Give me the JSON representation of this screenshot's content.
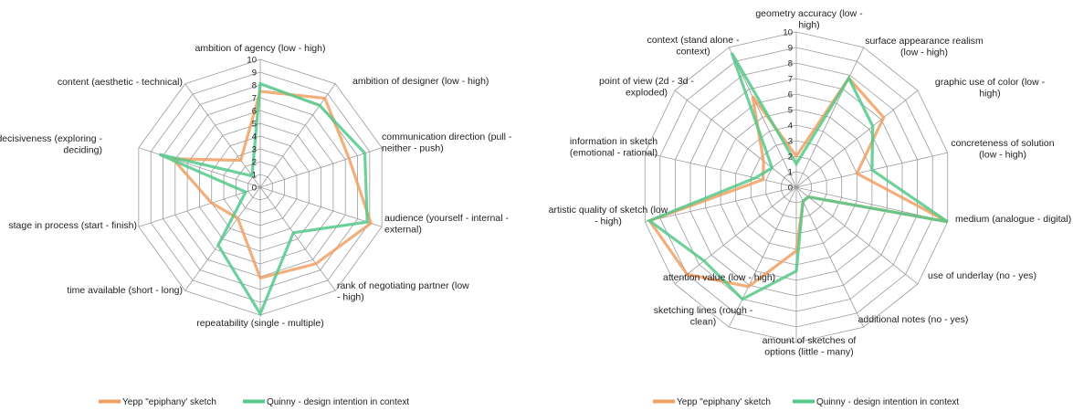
{
  "colors": {
    "yepp": "#F0A064",
    "quinny": "#55C88A",
    "grid": "#9a9a9a",
    "overlap": "#5E9C55"
  },
  "chart_data": [
    {
      "type": "radar",
      "rmax": 10,
      "ticks": [
        "0",
        "1",
        "2",
        "3",
        "4",
        "5",
        "6",
        "7",
        "8",
        "9",
        "10"
      ],
      "axes": [
        [
          "ambition of agency (low - high)"
        ],
        [
          "ambition of designer (low - high)"
        ],
        [
          "communication direction (pull -",
          "neither - push)"
        ],
        [
          "audience (yourself - internal -",
          "external)"
        ],
        [
          "rank of negotiating partner (low",
          "- high)"
        ],
        [
          "repeatability (single - multiple)"
        ],
        [
          "time available (short - long)"
        ],
        [
          "stage in process (start - finish)"
        ],
        [
          "decisiveness (exploring -",
          "deciding)"
        ],
        [
          "content (aesthetic - technical)"
        ]
      ],
      "series": [
        {
          "name": "Yepp \"epiphany' sketch",
          "values": [
            7.5,
            8.6,
            7.3,
            9.1,
            7.4,
            7.1,
            3,
            4,
            7.2,
            2.6
          ]
        },
        {
          "name": "Quinny - design intention in context",
          "values": [
            8.1,
            7.9,
            8.6,
            8.8,
            4.4,
            9.9,
            5.6,
            1.2,
            8.3,
            1.1
          ]
        }
      ]
    },
    {
      "type": "radar",
      "rmax": 10,
      "ticks": [
        "0",
        "1",
        "2",
        "3",
        "4",
        "5",
        "6",
        "7",
        "8",
        "9",
        "10"
      ],
      "axes": [
        [
          "geometry accuracy (low -",
          "high)"
        ],
        [
          "surface appearance realism",
          "(low - high)"
        ],
        [
          "graphic use of color (low -",
          "high)"
        ],
        [
          "concreteness of solution",
          "(low - high)"
        ],
        [
          "medium (analogue - digital)"
        ],
        [
          "use of underlay (no - yes)"
        ],
        [
          "additional notes (no - yes)"
        ],
        [
          "amount of sketches of",
          "options (little - many)"
        ],
        [
          "sketching lines (rough -",
          "clean)"
        ],
        [
          "attention value (low - high)"
        ],
        [
          "artistic quality of sketch (low",
          "- high)"
        ],
        [
          "information in sketch",
          "(emotional - rational)"
        ],
        [
          "point of view (2d - 3d -",
          "exploded)"
        ],
        [
          "context (stand alone -",
          "context)"
        ]
      ],
      "series": [
        {
          "name": "Yepp \"epiphany' sketch",
          "values": [
            2,
            7.8,
            7.2,
            4,
            10,
            1,
            1,
            4.1,
            7.1,
            9,
            9.7,
            2.2,
            2.7,
            6.5
          ]
        },
        {
          "name": "Quinny - design intention in context",
          "values": [
            1.5,
            7.8,
            6.3,
            5,
            10,
            1,
            1,
            5.4,
            8,
            7.6,
            9.7,
            2.7,
            2,
            9.6
          ]
        }
      ]
    }
  ]
}
